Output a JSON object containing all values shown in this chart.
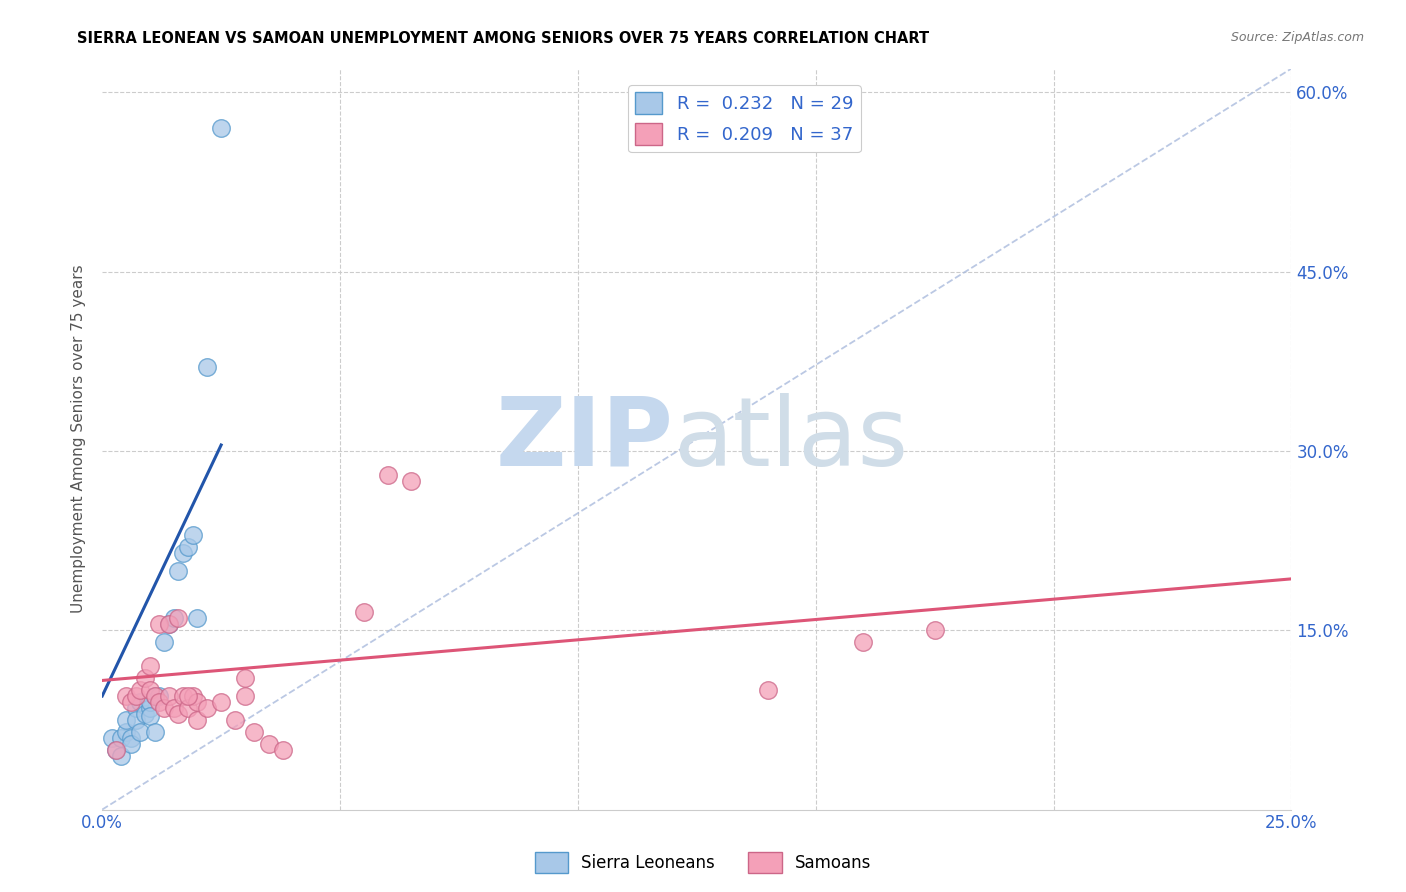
{
  "title": "SIERRA LEONEAN VS SAMOAN UNEMPLOYMENT AMONG SENIORS OVER 75 YEARS CORRELATION CHART",
  "source": "Source: ZipAtlas.com",
  "ylabel": "Unemployment Among Seniors over 75 years",
  "xlim": [
    0.0,
    0.25
  ],
  "ylim": [
    0.0,
    0.62
  ],
  "r_sierra": 0.232,
  "n_sierra": 29,
  "r_samoan": 0.209,
  "n_samoan": 37,
  "sierra_color": "#a8c8e8",
  "samoan_color": "#f4a0b8",
  "sierra_edge_color": "#5599cc",
  "samoan_edge_color": "#cc6688",
  "sierra_line_color": "#2255aa",
  "samoan_line_color": "#dd5577",
  "diagonal_color": "#aabbdd",
  "sierra_legend_label": "Sierra Leoneans",
  "samoan_legend_label": "Samoans",
  "legend_r_color": "#3366cc",
  "sierra_x": [
    0.002,
    0.003,
    0.004,
    0.004,
    0.005,
    0.005,
    0.006,
    0.006,
    0.007,
    0.007,
    0.008,
    0.008,
    0.009,
    0.01,
    0.01,
    0.01,
    0.011,
    0.011,
    0.012,
    0.013,
    0.014,
    0.015,
    0.016,
    0.017,
    0.018,
    0.019,
    0.02,
    0.022,
    0.025
  ],
  "sierra_y": [
    0.06,
    0.05,
    0.06,
    0.045,
    0.065,
    0.075,
    0.06,
    0.055,
    0.085,
    0.075,
    0.09,
    0.065,
    0.08,
    0.085,
    0.09,
    0.078,
    0.095,
    0.065,
    0.095,
    0.14,
    0.155,
    0.16,
    0.2,
    0.215,
    0.22,
    0.23,
    0.16,
    0.37,
    0.57
  ],
  "samoan_x": [
    0.003,
    0.005,
    0.006,
    0.007,
    0.008,
    0.009,
    0.01,
    0.01,
    0.011,
    0.012,
    0.013,
    0.014,
    0.015,
    0.016,
    0.017,
    0.018,
    0.019,
    0.02,
    0.02,
    0.022,
    0.025,
    0.028,
    0.03,
    0.03,
    0.032,
    0.035,
    0.038,
    0.055,
    0.06,
    0.065,
    0.14,
    0.16,
    0.175,
    0.012,
    0.014,
    0.016,
    0.018
  ],
  "samoan_y": [
    0.05,
    0.095,
    0.09,
    0.095,
    0.1,
    0.11,
    0.12,
    0.1,
    0.095,
    0.09,
    0.085,
    0.095,
    0.085,
    0.08,
    0.095,
    0.085,
    0.095,
    0.075,
    0.09,
    0.085,
    0.09,
    0.075,
    0.11,
    0.095,
    0.065,
    0.055,
    0.05,
    0.165,
    0.28,
    0.275,
    0.1,
    0.14,
    0.15,
    0.155,
    0.155,
    0.16,
    0.095
  ],
  "sierra_line_x": [
    0.0,
    0.025
  ],
  "sierra_line_y": [
    0.095,
    0.305
  ],
  "samoan_line_x": [
    0.0,
    0.25
  ],
  "samoan_line_y": [
    0.108,
    0.193
  ]
}
